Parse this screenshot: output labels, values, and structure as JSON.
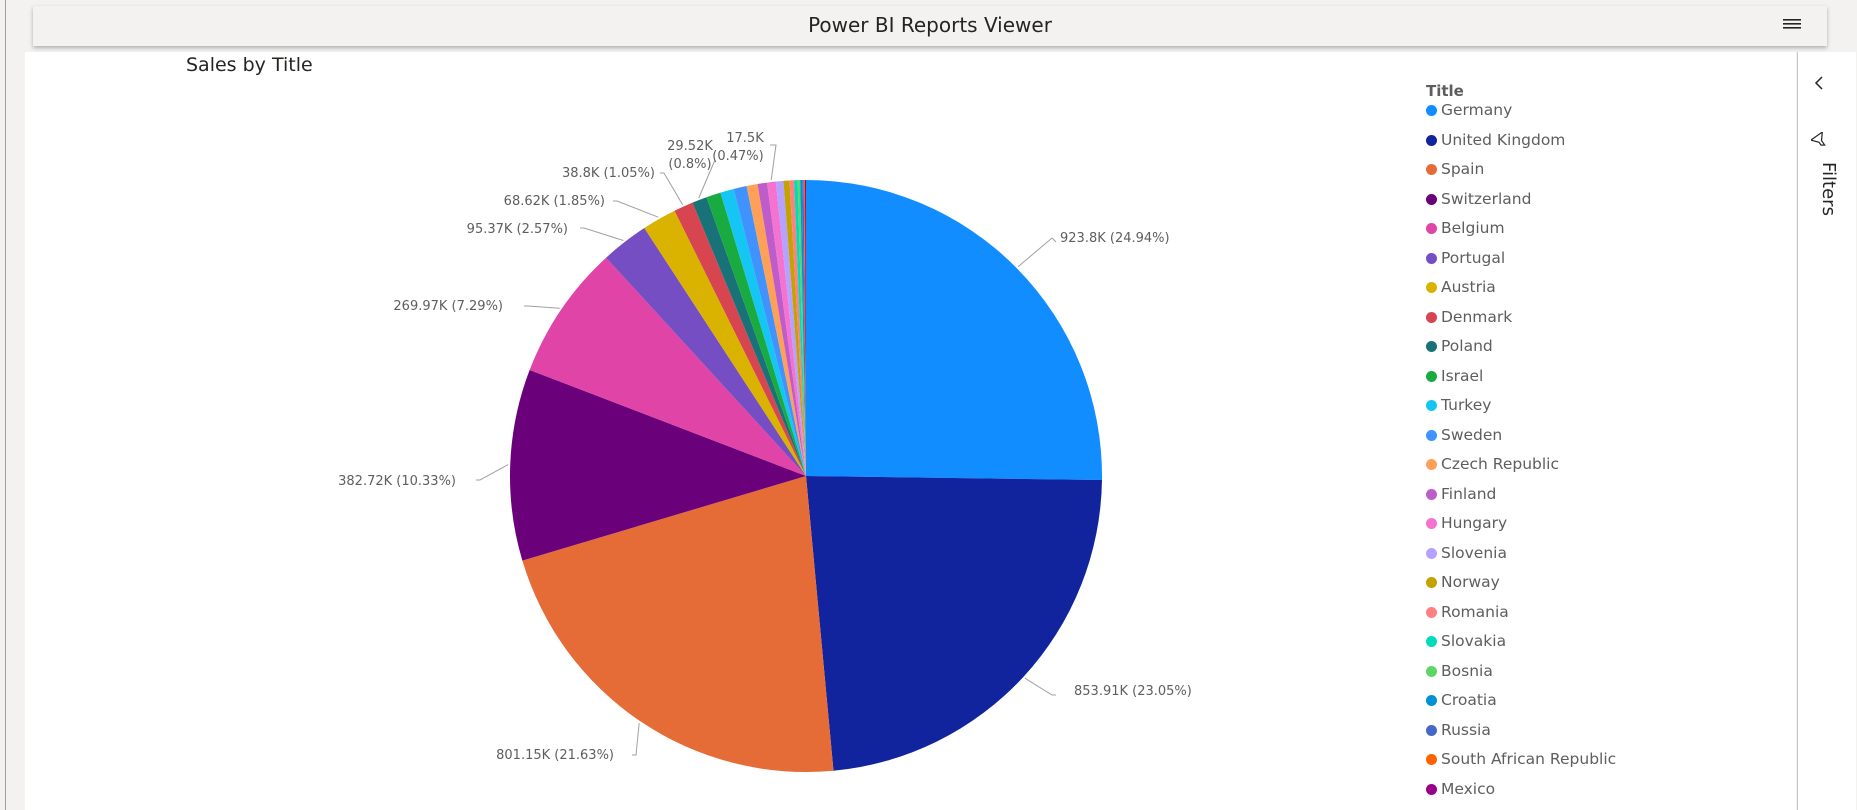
{
  "app": {
    "title": "Power BI Reports Viewer"
  },
  "visual": {
    "title": "Sales by Title"
  },
  "filters": {
    "label": "Filters"
  },
  "icons": {
    "menu": "hamburger-menu-icon",
    "collapse": "chevron-left-icon",
    "filter": "funnel-icon"
  },
  "chart_data": {
    "type": "pie",
    "title": "Sales by Title",
    "legend_title": "Title",
    "legend_position": "right",
    "slices": [
      {
        "label": "Germany",
        "value": 923800,
        "percent": 24.94,
        "color": "#118dff",
        "data_label": "923.8K (24.94%)"
      },
      {
        "label": "United Kingdom",
        "value": 853910,
        "percent": 23.05,
        "color": "#12239e",
        "data_label": "853.91K (23.05%)"
      },
      {
        "label": "Spain",
        "value": 801150,
        "percent": 21.63,
        "color": "#e66c37",
        "data_label": "801.15K (21.63%)"
      },
      {
        "label": "Switzerland",
        "value": 382720,
        "percent": 10.33,
        "color": "#6b007b",
        "data_label": "382.72K (10.33%)"
      },
      {
        "label": "Belgium",
        "value": 269970,
        "percent": 7.29,
        "color": "#e044a7",
        "data_label": "269.97K (7.29%)"
      },
      {
        "label": "Portugal",
        "value": 95370,
        "percent": 2.57,
        "color": "#744ec2",
        "data_label": "95.37K (2.57%)"
      },
      {
        "label": "Austria",
        "value": 68620,
        "percent": 1.85,
        "color": "#d9b300",
        "data_label": "68.62K (1.85%)"
      },
      {
        "label": "Denmark",
        "value": 38800,
        "percent": 1.05,
        "color": "#d64550",
        "data_label": "38.8K (1.05%)"
      },
      {
        "label": "Poland",
        "value": 29520,
        "percent": 0.8,
        "color": "#197278",
        "data_label": "29.52K (0.8%)"
      },
      {
        "label": "Israel",
        "value": 29000,
        "percent": 0.78,
        "color": "#1aab40",
        "data_label": ""
      },
      {
        "label": "Turkey",
        "value": 27000,
        "percent": 0.73,
        "color": "#15c6f4",
        "data_label": ""
      },
      {
        "label": "Sweden",
        "value": 26000,
        "percent": 0.7,
        "color": "#4092ff",
        "data_label": ""
      },
      {
        "label": "Czech Republic",
        "value": 22000,
        "percent": 0.59,
        "color": "#ffa058",
        "data_label": ""
      },
      {
        "label": "Finland",
        "value": 19000,
        "percent": 0.51,
        "color": "#be5dc9",
        "data_label": ""
      },
      {
        "label": "Hungary",
        "value": 17500,
        "percent": 0.47,
        "color": "#f472d0",
        "data_label": "17.5K (0.47%)"
      },
      {
        "label": "Slovenia",
        "value": 15000,
        "percent": 0.4,
        "color": "#b5a1ff",
        "data_label": ""
      },
      {
        "label": "Norway",
        "value": 12000,
        "percent": 0.32,
        "color": "#c4a200",
        "data_label": ""
      },
      {
        "label": "Romania",
        "value": 9000,
        "percent": 0.24,
        "color": "#ff8080",
        "data_label": ""
      },
      {
        "label": "Slovakia",
        "value": 7000,
        "percent": 0.19,
        "color": "#00dbbc",
        "data_label": ""
      },
      {
        "label": "Bosnia",
        "value": 5000,
        "percent": 0.13,
        "color": "#5bd667",
        "data_label": ""
      },
      {
        "label": "Croatia",
        "value": 4000,
        "percent": 0.11,
        "color": "#0091d5",
        "data_label": ""
      },
      {
        "label": "Russia",
        "value": 3000,
        "percent": 0.08,
        "color": "#4668c5",
        "data_label": ""
      },
      {
        "label": "South African Republic",
        "value": 2500,
        "percent": 0.07,
        "color": "#ff6300",
        "data_label": ""
      },
      {
        "label": "Mexico",
        "value": 2000,
        "percent": 0.05,
        "color": "#99008a",
        "data_label": ""
      }
    ]
  }
}
